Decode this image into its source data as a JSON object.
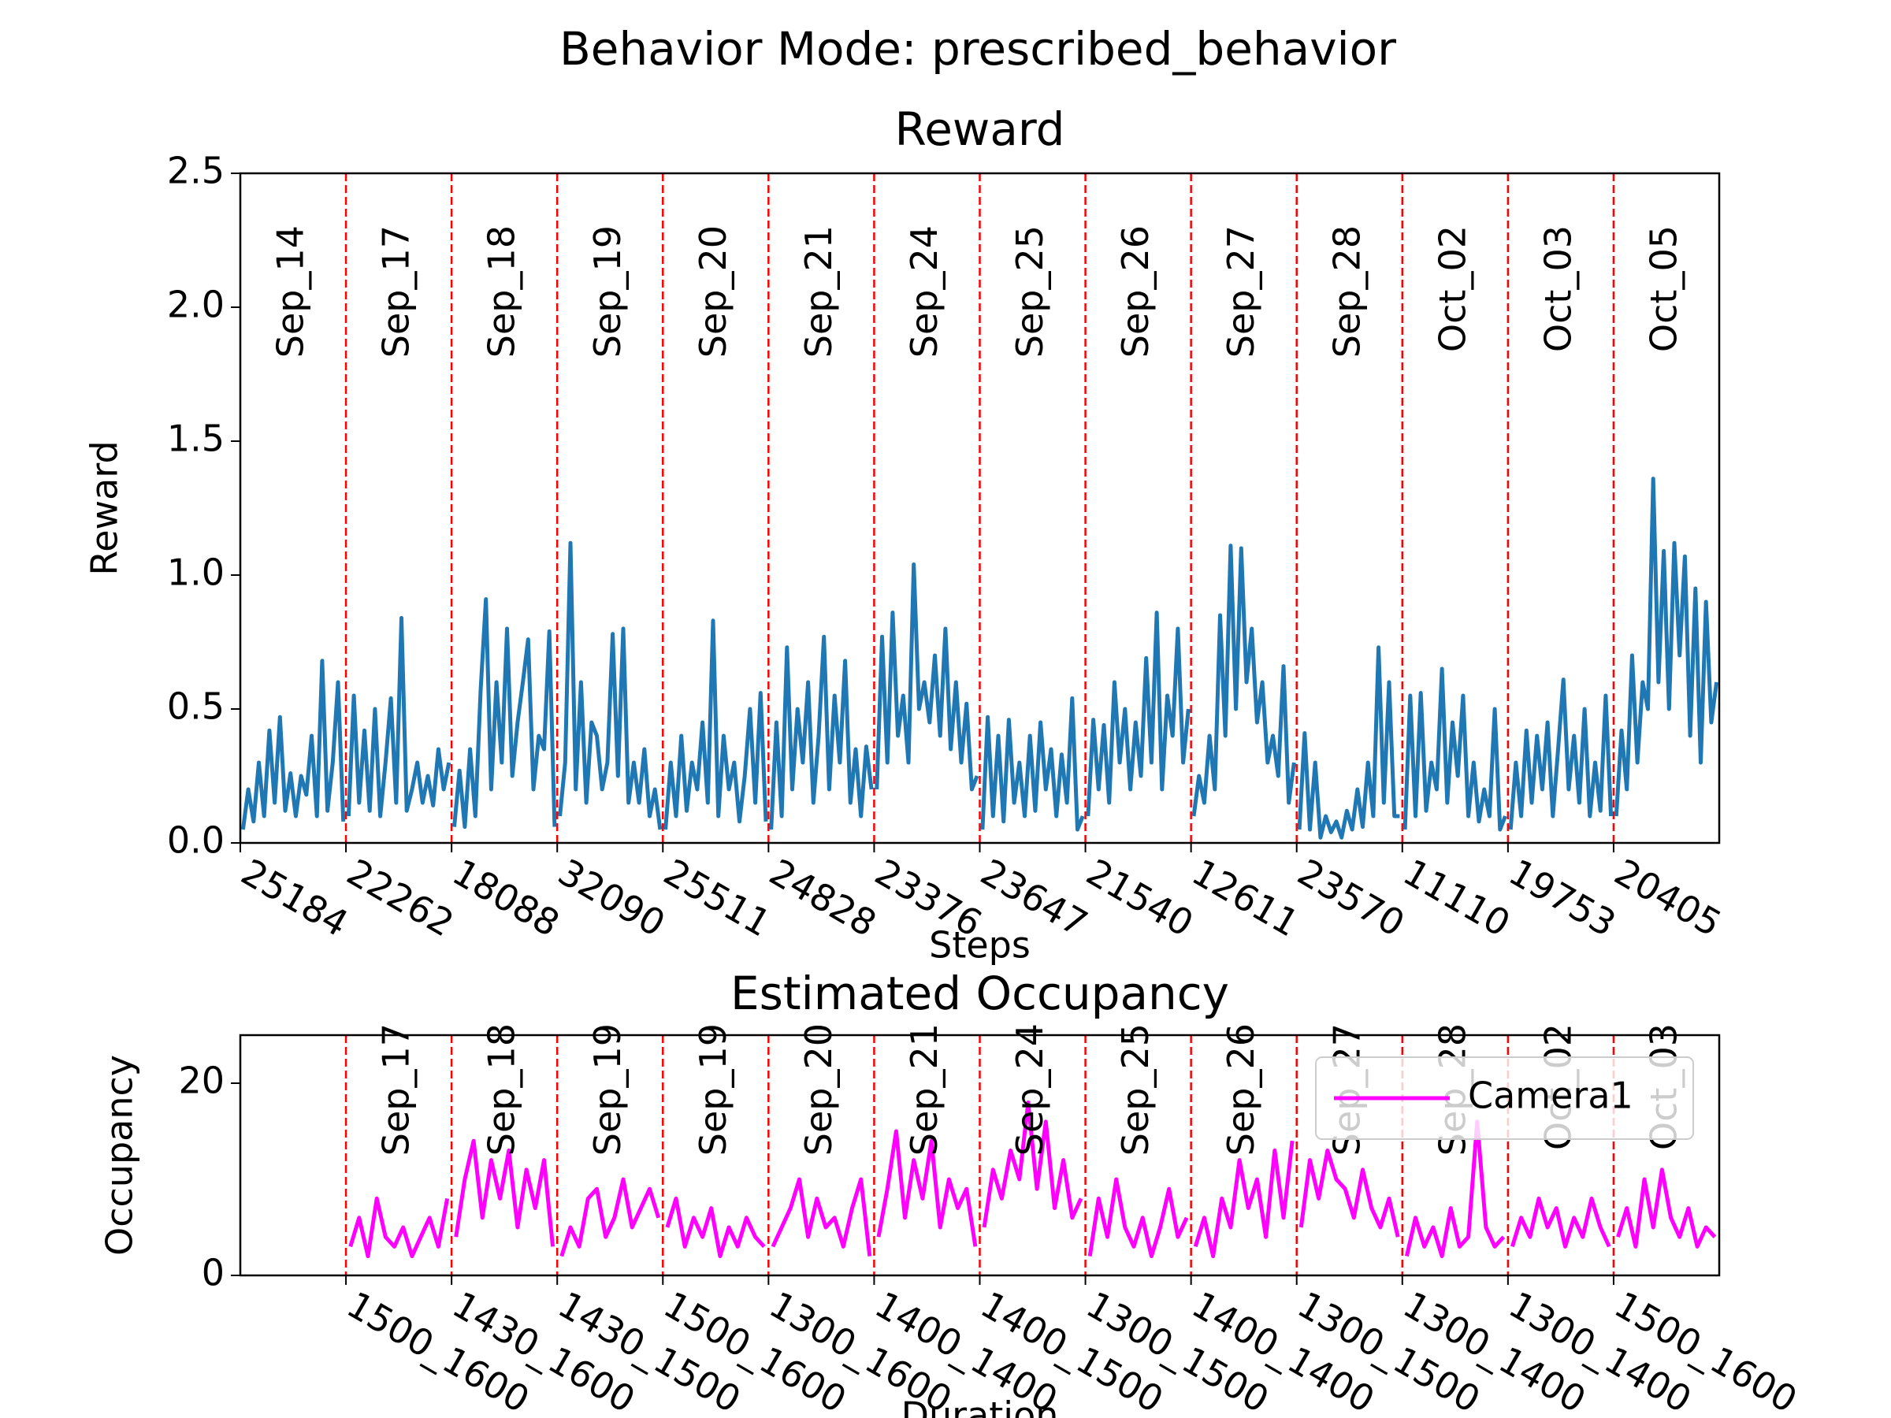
{
  "title": "Behavior Mode: prescribed_behavior",
  "chart_data": [
    {
      "type": "line",
      "title": "Reward",
      "xlabel": "Steps",
      "ylabel": "Reward",
      "categories": [
        "25184",
        "22262",
        "18088",
        "32090",
        "25511",
        "24828",
        "23376",
        "23647",
        "21540",
        "12611",
        "23570",
        "11110",
        "19753",
        "20405"
      ],
      "annotations": [
        "Sep_14",
        "Sep_17",
        "Sep_18",
        "Sep_19",
        "Sep_20",
        "Sep_21",
        "Sep_24",
        "Sep_25",
        "Sep_26",
        "Sep_27",
        "Sep_28",
        "Oct_02",
        "Oct_03",
        "Oct_05"
      ],
      "color": "#1f77b4",
      "divider_color": "#ff0000",
      "values": [
        [
          0.05,
          0.2,
          0.08,
          0.3,
          0.1,
          0.42,
          0.15,
          0.47,
          0.12,
          0.26,
          0.1,
          0.25,
          0.18,
          0.4,
          0.1,
          0.68,
          0.12,
          0.3,
          0.6,
          0.08
        ],
        [
          0.1,
          0.55,
          0.15,
          0.42,
          0.12,
          0.5,
          0.1,
          0.3,
          0.54,
          0.15,
          0.84,
          0.12,
          0.2,
          0.3,
          0.15,
          0.25,
          0.14,
          0.35,
          0.2,
          0.3
        ],
        [
          0.06,
          0.27,
          0.06,
          0.35,
          0.1,
          0.57,
          0.91,
          0.2,
          0.6,
          0.3,
          0.8,
          0.25,
          0.45,
          0.6,
          0.76,
          0.2,
          0.4,
          0.35,
          0.79,
          0.06
        ],
        [
          0.1,
          0.3,
          1.12,
          0.2,
          0.6,
          0.15,
          0.45,
          0.4,
          0.2,
          0.3,
          0.78,
          0.25,
          0.8,
          0.15,
          0.3,
          0.15,
          0.35,
          0.1,
          0.2,
          0.05
        ],
        [
          0.05,
          0.3,
          0.1,
          0.4,
          0.12,
          0.3,
          0.2,
          0.45,
          0.15,
          0.83,
          0.1,
          0.4,
          0.2,
          0.3,
          0.08,
          0.25,
          0.5,
          0.15,
          0.56,
          0.08
        ],
        [
          0.05,
          0.45,
          0.1,
          0.73,
          0.2,
          0.5,
          0.3,
          0.6,
          0.15,
          0.4,
          0.77,
          0.2,
          0.55,
          0.3,
          0.68,
          0.15,
          0.35,
          0.1,
          0.36,
          0.2
        ],
        [
          0.2,
          0.77,
          0.3,
          0.86,
          0.4,
          0.55,
          0.3,
          1.04,
          0.5,
          0.6,
          0.45,
          0.7,
          0.4,
          0.8,
          0.35,
          0.6,
          0.3,
          0.52,
          0.2,
          0.25
        ],
        [
          0.05,
          0.47,
          0.1,
          0.4,
          0.08,
          0.46,
          0.15,
          0.3,
          0.1,
          0.4,
          0.12,
          0.45,
          0.2,
          0.35,
          0.1,
          0.33,
          0.15,
          0.54,
          0.05,
          0.1
        ],
        [
          0.1,
          0.46,
          0.2,
          0.44,
          0.15,
          0.6,
          0.3,
          0.5,
          0.2,
          0.45,
          0.25,
          0.69,
          0.3,
          0.86,
          0.2,
          0.55,
          0.4,
          0.8,
          0.3,
          0.5
        ],
        [
          0.1,
          0.25,
          0.15,
          0.4,
          0.2,
          0.85,
          0.4,
          1.11,
          0.5,
          1.1,
          0.6,
          0.8,
          0.45,
          0.6,
          0.3,
          0.4,
          0.25,
          0.66,
          0.15,
          0.3
        ],
        [
          0.05,
          0.41,
          0.05,
          0.3,
          0.02,
          0.1,
          0.04,
          0.08,
          0.02,
          0.12,
          0.05,
          0.2,
          0.06,
          0.3,
          0.1,
          0.73,
          0.15,
          0.6,
          0.1,
          0.1
        ],
        [
          0.05,
          0.55,
          0.1,
          0.56,
          0.12,
          0.3,
          0.2,
          0.65,
          0.15,
          0.45,
          0.25,
          0.55,
          0.1,
          0.3,
          0.08,
          0.2,
          0.1,
          0.5,
          0.05,
          0.1
        ],
        [
          0.05,
          0.3,
          0.1,
          0.42,
          0.15,
          0.4,
          0.2,
          0.45,
          0.1,
          0.35,
          0.61,
          0.2,
          0.4,
          0.15,
          0.5,
          0.1,
          0.3,
          0.12,
          0.55,
          0.1
        ],
        [
          0.1,
          0.42,
          0.2,
          0.7,
          0.3,
          0.6,
          0.5,
          1.36,
          0.6,
          1.09,
          0.5,
          1.12,
          0.7,
          1.07,
          0.4,
          0.95,
          0.3,
          0.9,
          0.45,
          0.6
        ]
      ],
      "ylim": [
        0,
        2.5
      ],
      "yticks": [
        {
          "value": 0,
          "label": "0.0"
        },
        0.5,
        {
          "value": 1,
          "label": "1.0"
        },
        1.5,
        {
          "value": 2,
          "label": "2.0"
        },
        2.5
      ]
    },
    {
      "type": "line",
      "title": "Estimated Occupancy",
      "xlabel": "Duration",
      "ylabel": "Occupancy",
      "categories": [
        null,
        "1500_1600",
        "1430_1600",
        "1430_1500",
        "1500_1600",
        "1300_1600",
        "1400_1400",
        "1400_1500",
        "1300_1500",
        "1400_1400",
        "1300_1500",
        "1300_1400",
        "1300_1400",
        "1500_1600"
      ],
      "annotations": [
        null,
        "Sep_17",
        "Sep_18",
        "Sep_19",
        "Sep_19",
        "Sep_20",
        "Sep_21",
        "Sep_24",
        "Sep_25",
        "Sep_26",
        "Sep_27",
        "Sep_28",
        "Oct_02",
        "Oct_03"
      ],
      "divider_color": "#ff0000",
      "series": [
        {
          "name": "Camera1",
          "color": "#ff00ff",
          "values": [
            null,
            [
              3,
              6,
              2,
              8,
              4,
              3,
              5,
              2,
              4,
              6,
              3,
              8
            ],
            [
              4,
              10,
              14,
              6,
              12,
              8,
              13,
              5,
              11,
              7,
              12,
              3
            ],
            [
              2,
              5,
              3,
              8,
              9,
              4,
              6,
              10,
              5,
              7,
              9,
              6
            ],
            [
              5,
              8,
              3,
              6,
              4,
              7,
              2,
              5,
              3,
              6,
              4,
              3
            ],
            [
              3,
              5,
              7,
              10,
              4,
              8,
              5,
              6,
              3,
              7,
              10,
              2
            ],
            [
              4,
              9,
              15,
              6,
              12,
              8,
              14,
              5,
              10,
              7,
              9,
              3
            ],
            [
              5,
              11,
              8,
              13,
              10,
              18,
              9,
              16,
              7,
              12,
              6,
              8
            ],
            [
              2,
              8,
              4,
              10,
              5,
              3,
              6,
              2,
              5,
              9,
              4,
              6
            ],
            [
              3,
              6,
              2,
              8,
              5,
              12,
              7,
              10,
              4,
              13,
              6,
              14
            ],
            [
              5,
              12,
              8,
              13,
              10,
              9,
              6,
              11,
              7,
              5,
              8,
              4
            ],
            [
              2,
              6,
              3,
              5,
              2,
              7,
              3,
              4,
              16,
              5,
              3,
              4
            ],
            [
              3,
              6,
              4,
              8,
              5,
              7,
              3,
              6,
              4,
              8,
              5,
              3
            ],
            [
              4,
              7,
              3,
              10,
              5,
              11,
              6,
              4,
              7,
              3,
              5,
              4
            ]
          ]
        }
      ],
      "legend": "upper right",
      "ylim": [
        0,
        25
      ],
      "yticks": [
        0,
        20
      ]
    }
  ]
}
